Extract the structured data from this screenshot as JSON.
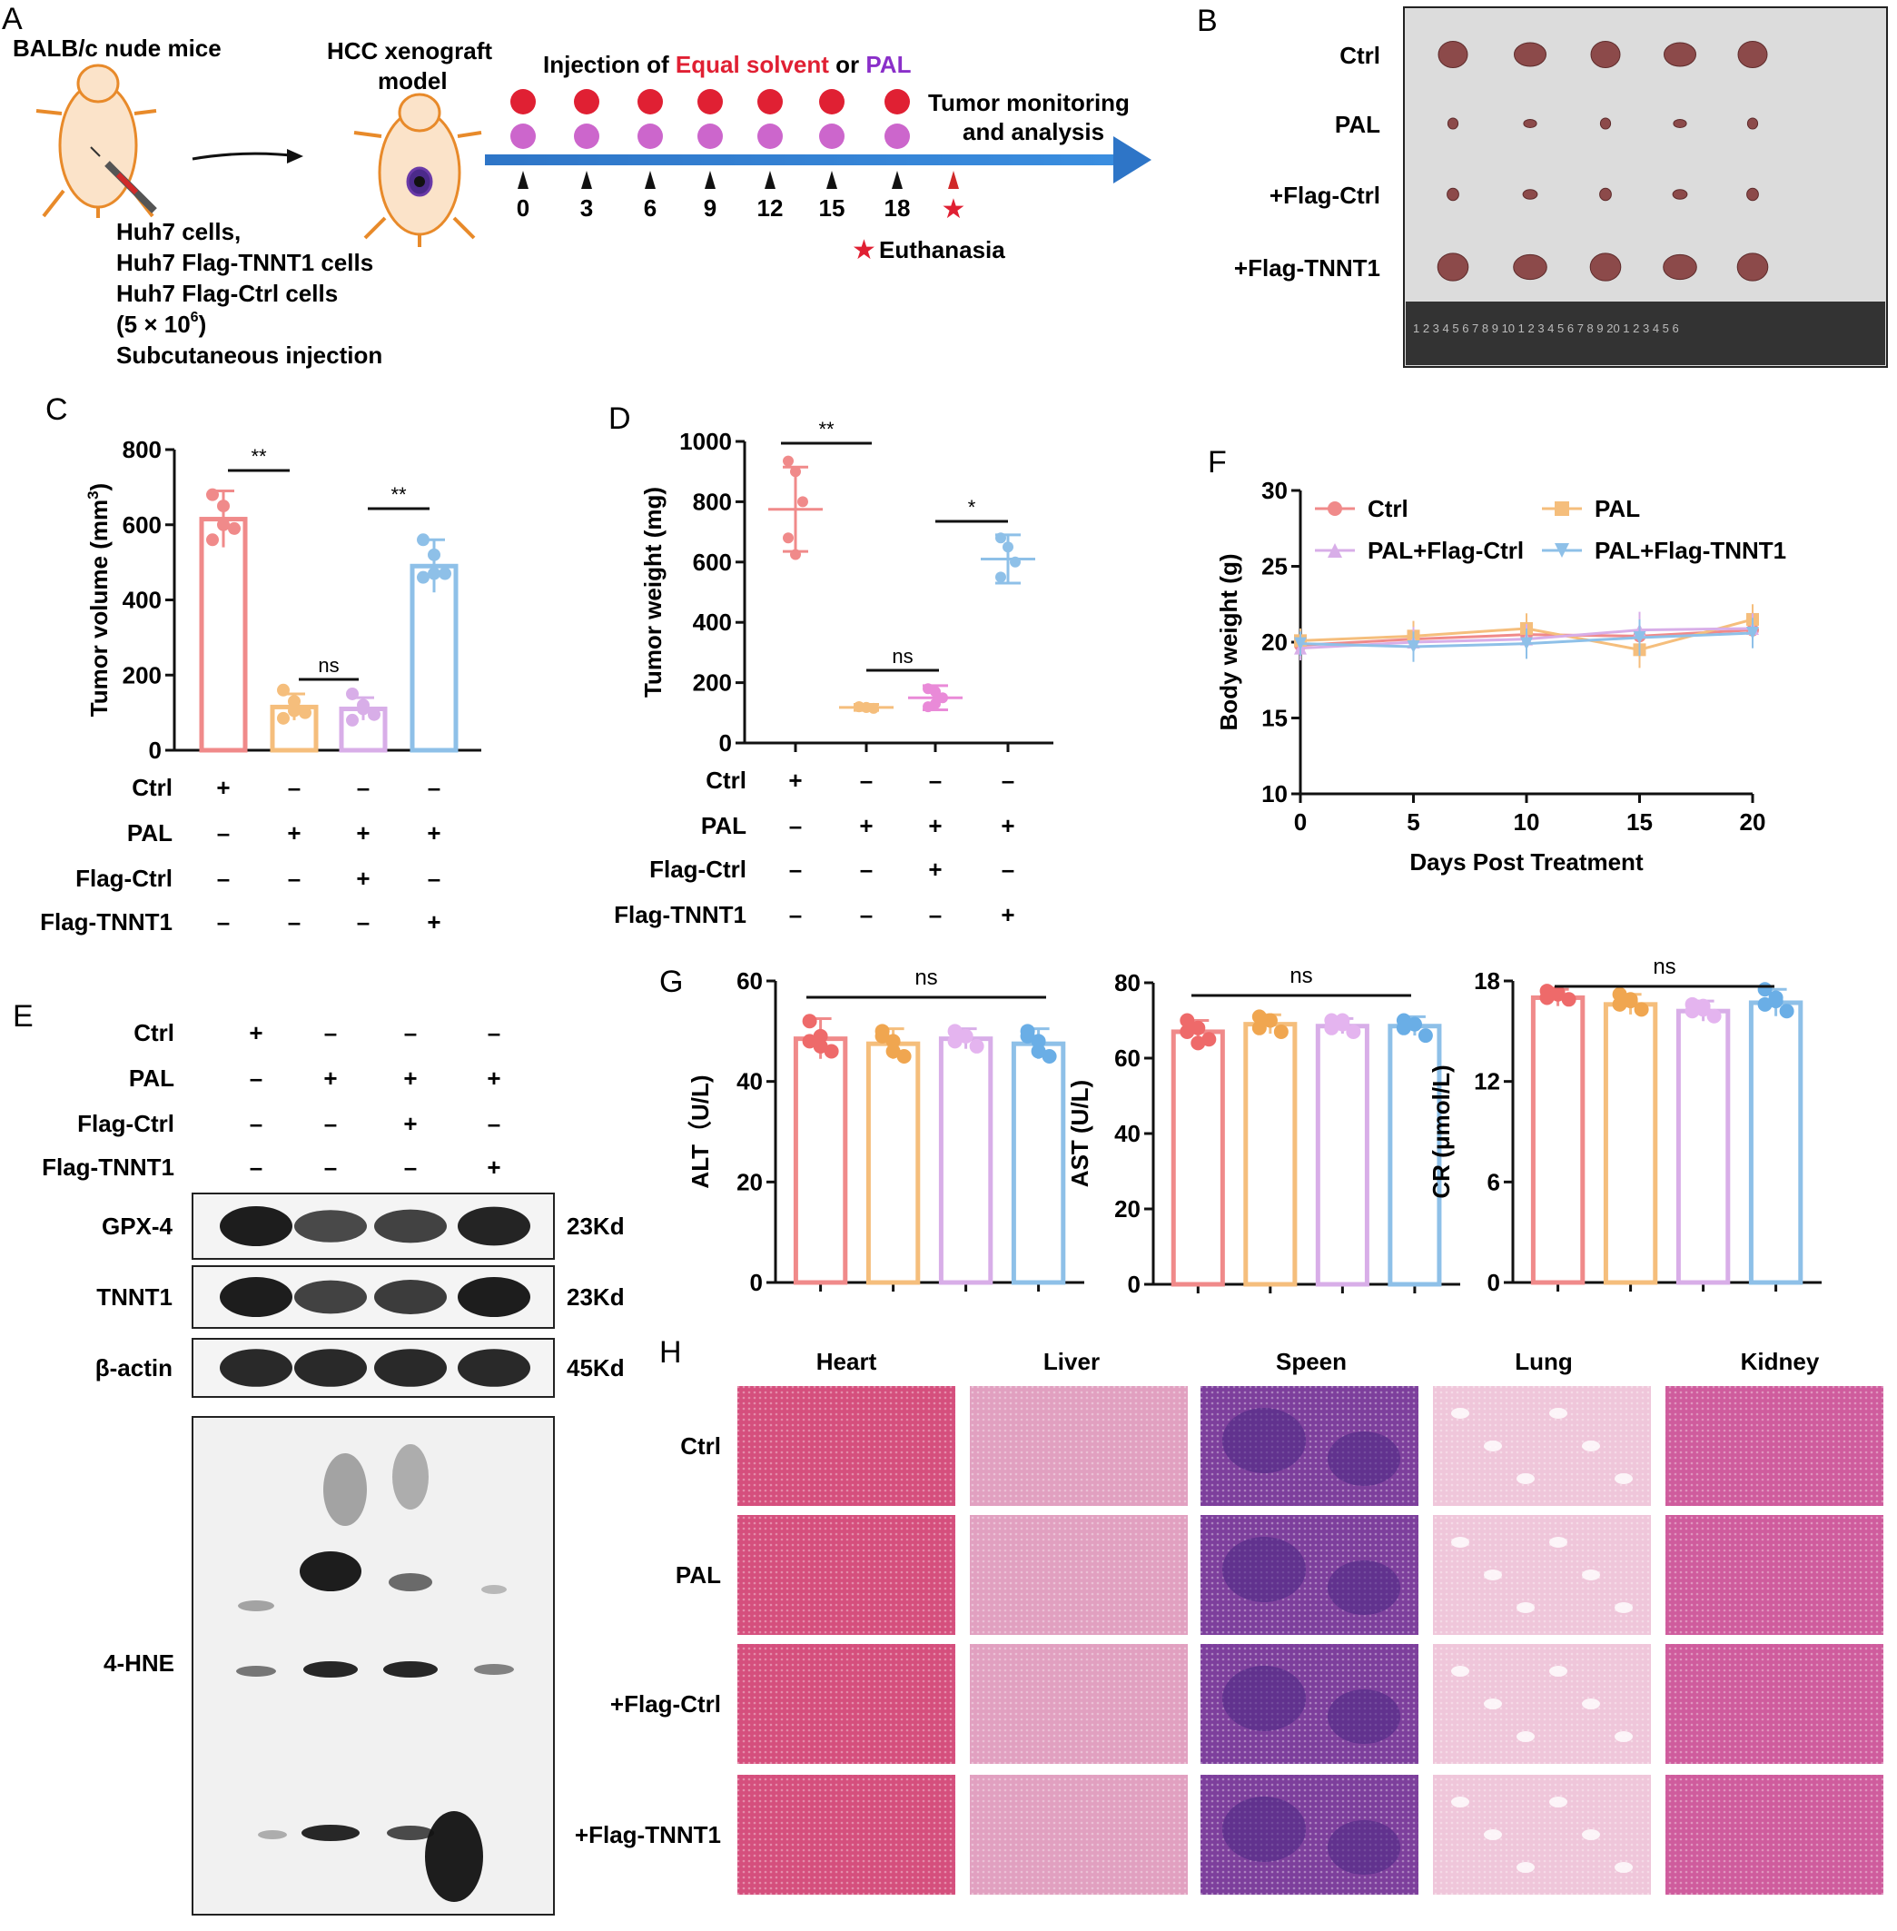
{
  "panel_labels": [
    "A",
    "B",
    "C",
    "D",
    "E",
    "F",
    "G",
    "H"
  ],
  "panelA": {
    "mouse_label": "BALB/c nude mice",
    "model_label_1": "HCC xenograft",
    "model_label_2": "model",
    "injection_prefix": "Injection of ",
    "injection_solvent": "Equal solvent",
    "injection_or": " or ",
    "injection_pal": "PAL",
    "monitor_1": "Tumor monitoring",
    "monitor_2": "and analysis",
    "days": [
      "0",
      "3",
      "6",
      "9",
      "12",
      "15",
      "18"
    ],
    "euthanasia": "Euthanasia",
    "cells": [
      "Huh7 cells,",
      "Huh7 Flag-TNNT1 cells",
      "Huh7 Flag-Ctrl cells"
    ],
    "dose_main": "(5 × 10",
    "dose_sup": "6",
    "dose_close": ")",
    "route": "Subcutaneous injection",
    "colors": {
      "solvent": "#e02033",
      "pal": "#cc66cc",
      "arrow": "#2e75c7"
    }
  },
  "panelB": {
    "rows": [
      "Ctrl",
      "PAL",
      "+Flag-Ctrl",
      "+Flag-TNNT1"
    ],
    "tumor_relative_size": [
      1.0,
      0.35,
      0.4,
      1.05
    ],
    "ruler_text": "1 2 3 4 5 6 7 8 9 10 1 2 3 4 5 6 7 8 9 20 1 2 3 4 5 6"
  },
  "conditions": {
    "row_labels": [
      "Ctrl",
      "PAL",
      "Flag-Ctrl",
      "Flag-TNNT1"
    ],
    "matrix": [
      [
        "+",
        "–",
        "–",
        "–"
      ],
      [
        "–",
        "+",
        "+",
        "+"
      ],
      [
        "–",
        "–",
        "+",
        "–"
      ],
      [
        "–",
        "–",
        "–",
        "+"
      ]
    ]
  },
  "group_colors": [
    "#f08a8a",
    "#f5be7c",
    "#d8aee8",
    "#8ec0e8"
  ],
  "chart_data": [
    {
      "panel": "C",
      "type": "bar",
      "ylabel": "Tumor volume (mm³)",
      "ylabel_main": "Tumor volume (mm",
      "ylabel_sup": "3",
      "ylabel_close": ")",
      "ylim": [
        0,
        800
      ],
      "yticks": [
        "0",
        "200",
        "400",
        "600",
        "800"
      ],
      "values": [
        615,
        115,
        110,
        490
      ],
      "errors": [
        75,
        35,
        30,
        70
      ],
      "points": [
        [
          680,
          650,
          590,
          560,
          600
        ],
        [
          160,
          130,
          100,
          85,
          105
        ],
        [
          150,
          120,
          95,
          80,
          110
        ],
        [
          560,
          520,
          470,
          460,
          470
        ]
      ],
      "significance": [
        {
          "from": 0,
          "to": 1,
          "label": "**"
        },
        {
          "from": 1,
          "to": 2,
          "label": "ns"
        },
        {
          "from": 2,
          "to": 3,
          "label": "**"
        }
      ]
    },
    {
      "panel": "D",
      "type": "scatter",
      "ylabel": "Tumor weight (mg)",
      "ylim": [
        0,
        1000
      ],
      "yticks": [
        "0",
        "200",
        "400",
        "600",
        "800",
        "1000"
      ],
      "values": [
        775,
        118,
        150,
        610
      ],
      "errors": [
        140,
        10,
        40,
        80
      ],
      "points": [
        [
          935,
          900,
          800,
          680,
          625
        ],
        [
          120,
          118,
          115,
          120,
          118
        ],
        [
          180,
          170,
          150,
          120,
          130
        ],
        [
          680,
          650,
          600,
          550
        ]
      ],
      "significance": [
        {
          "from": 0,
          "to": 1,
          "label": "**"
        },
        {
          "from": 1,
          "to": 2,
          "label": "ns"
        },
        {
          "from": 2,
          "to": 3,
          "label": "*"
        }
      ]
    },
    {
      "panel": "F",
      "type": "line",
      "xlabel": "Days Post Treatment",
      "ylabel": "Body weight (g)",
      "x": [
        0,
        5,
        10,
        15,
        20
      ],
      "xticks": [
        "0",
        "5",
        "10",
        "15",
        "20"
      ],
      "ylim": [
        10,
        30
      ],
      "yticks": [
        "10",
        "15",
        "20",
        "25",
        "30"
      ],
      "series": [
        {
          "name": "Ctrl",
          "marker": "circle",
          "color": "#f08a8a",
          "values": [
            19.8,
            20.2,
            20.5,
            20.4,
            20.8
          ]
        },
        {
          "name": "PAL",
          "marker": "square",
          "color": "#f5be7c",
          "values": [
            20.1,
            20.4,
            20.9,
            19.5,
            21.5
          ]
        },
        {
          "name": "PAL+Flag-Ctrl",
          "marker": "triangle-up",
          "color": "#d8aee8",
          "values": [
            19.6,
            20.0,
            20.2,
            20.8,
            20.9
          ]
        },
        {
          "name": "PAL+Flag-TNNT1",
          "marker": "triangle-down",
          "color": "#8ec0e8",
          "values": [
            19.9,
            19.7,
            19.9,
            20.3,
            20.6
          ]
        }
      ],
      "errors": [
        0.8,
        1.0,
        1.0,
        1.2,
        1.0
      ]
    },
    {
      "panel": "G",
      "type": "bar",
      "ylabel": "ALT（U/L)",
      "ylim": [
        0,
        60
      ],
      "yticks": [
        "0",
        "20",
        "40",
        "60"
      ],
      "values": [
        48.5,
        47.5,
        48.5,
        47.5
      ],
      "errors": [
        4,
        3,
        2,
        3
      ],
      "points": [
        [
          52,
          49,
          46,
          48,
          47
        ],
        [
          50,
          48,
          45,
          49,
          46
        ],
        [
          50,
          49,
          47,
          48,
          49
        ],
        [
          50,
          48,
          45,
          49,
          46
        ]
      ],
      "ns_label": "ns"
    },
    {
      "panel": "G",
      "type": "bar",
      "ylabel": "AST (U/L)",
      "ylim": [
        0,
        80
      ],
      "yticks": [
        "0",
        "20",
        "40",
        "60",
        "80"
      ],
      "values": [
        67,
        69,
        68.5,
        68.5
      ],
      "errors": [
        3,
        2.5,
        2,
        2.5
      ],
      "points": [
        [
          70,
          68,
          65,
          67,
          64
        ],
        [
          71,
          70,
          67,
          68,
          70
        ],
        [
          70,
          69,
          67,
          68,
          70
        ],
        [
          70,
          69,
          66,
          68,
          69
        ]
      ],
      "ns_label": "ns"
    },
    {
      "panel": "G",
      "type": "bar",
      "ylabel": "CR (μmol/L)",
      "ylim": [
        0,
        18
      ],
      "yticks": [
        "0",
        "6",
        "12",
        "18"
      ],
      "values": [
        17,
        16.6,
        16.2,
        16.7
      ],
      "errors": [
        0.5,
        0.6,
        0.6,
        0.8
      ],
      "points": [
        [
          17.4,
          17.2,
          16.9,
          17.0,
          17.3
        ],
        [
          17.2,
          16.8,
          16.3,
          16.6,
          16.9
        ],
        [
          16.6,
          16.3,
          15.9,
          16.2,
          16.5
        ],
        [
          17.5,
          16.8,
          16.2,
          16.6,
          17.0
        ]
      ],
      "ns_label": "ns"
    }
  ],
  "panelE": {
    "bands": [
      {
        "name": "GPX-4",
        "size": "23Kd",
        "intensity": [
          1.0,
          0.65,
          0.7,
          0.95
        ]
      },
      {
        "name": "TNNT1",
        "size": "23Kd",
        "intensity": [
          1.0,
          0.7,
          0.75,
          1.0
        ]
      },
      {
        "name": "β-actin",
        "size": "45Kd",
        "intensity": [
          0.9,
          0.9,
          0.9,
          0.9
        ]
      }
    ],
    "hne_label": "4-HNE"
  },
  "panelH": {
    "columns": [
      "Heart",
      "Liver",
      "Speen",
      "Lung",
      "Kidney"
    ],
    "rows": [
      "Ctrl",
      "PAL",
      "+Flag-Ctrl",
      "+Flag-TNNT1"
    ],
    "tissue_colors": [
      "#d54f7d",
      "#e1a0c0",
      "#7d3f9c",
      "#efc6da",
      "#cf5c9d"
    ]
  }
}
